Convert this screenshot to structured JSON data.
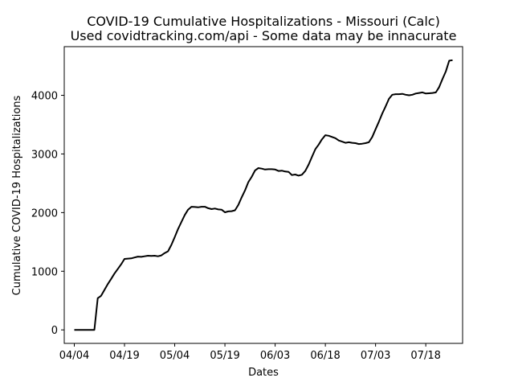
{
  "chart_data": {
    "type": "line",
    "title": "COVID-19 Cumulative Hospitalizations - Missouri (Calc)",
    "subtitle": "Used covidtracking.com/api - Some data may be innacurate",
    "xlabel": "Dates",
    "ylabel": "Cumulative COVID-19 Hospitalizations",
    "xlim": [
      "2020-04-01",
      "2020-07-29"
    ],
    "ylim": [
      -230,
      4830
    ],
    "x_ticks": [
      {
        "date": "2020-04-04",
        "label": "04/04"
      },
      {
        "date": "2020-04-19",
        "label": "04/19"
      },
      {
        "date": "2020-05-04",
        "label": "05/04"
      },
      {
        "date": "2020-05-19",
        "label": "05/19"
      },
      {
        "date": "2020-06-03",
        "label": "06/03"
      },
      {
        "date": "2020-06-18",
        "label": "06/18"
      },
      {
        "date": "2020-07-03",
        "label": "07/03"
      },
      {
        "date": "2020-07-18",
        "label": "07/18"
      }
    ],
    "y_ticks": [
      {
        "value": 0,
        "label": "0"
      },
      {
        "value": 1000,
        "label": "1000"
      },
      {
        "value": 2000,
        "label": "2000"
      },
      {
        "value": 3000,
        "label": "3000"
      },
      {
        "value": 4000,
        "label": "4000"
      }
    ],
    "grid": false,
    "line_color": "#000000",
    "series": [
      {
        "x": [
          "2020-04-04",
          "2020-04-05",
          "2020-04-06",
          "2020-04-07",
          "2020-04-08",
          "2020-04-09",
          "2020-04-10",
          "2020-04-11",
          "2020-04-12",
          "2020-04-13",
          "2020-04-14",
          "2020-04-15",
          "2020-04-16",
          "2020-04-17",
          "2020-04-18",
          "2020-04-19",
          "2020-04-20",
          "2020-04-21",
          "2020-04-22",
          "2020-04-23",
          "2020-04-24",
          "2020-04-25",
          "2020-04-26",
          "2020-04-27",
          "2020-04-28",
          "2020-04-29",
          "2020-04-30",
          "2020-05-01",
          "2020-05-02",
          "2020-05-03",
          "2020-05-04",
          "2020-05-05",
          "2020-05-06",
          "2020-05-07",
          "2020-05-08",
          "2020-05-09",
          "2020-05-10",
          "2020-05-11",
          "2020-05-12",
          "2020-05-13",
          "2020-05-14",
          "2020-05-15",
          "2020-05-16",
          "2020-05-17",
          "2020-05-18",
          "2020-05-19",
          "2020-05-20",
          "2020-05-21",
          "2020-05-22",
          "2020-05-23",
          "2020-05-24",
          "2020-05-25",
          "2020-05-26",
          "2020-05-27",
          "2020-05-28",
          "2020-05-29",
          "2020-05-30",
          "2020-05-31",
          "2020-06-01",
          "2020-06-02",
          "2020-06-03",
          "2020-06-04",
          "2020-06-05",
          "2020-06-06",
          "2020-06-07",
          "2020-06-08",
          "2020-06-09",
          "2020-06-10",
          "2020-06-11",
          "2020-06-12",
          "2020-06-13",
          "2020-06-14",
          "2020-06-15",
          "2020-06-16",
          "2020-06-17",
          "2020-06-18",
          "2020-06-19",
          "2020-06-20",
          "2020-06-21",
          "2020-06-22",
          "2020-06-23",
          "2020-06-24",
          "2020-06-25",
          "2020-06-26",
          "2020-06-27",
          "2020-06-28",
          "2020-06-29",
          "2020-06-30",
          "2020-07-01",
          "2020-07-02",
          "2020-07-03",
          "2020-07-04",
          "2020-07-05",
          "2020-07-06",
          "2020-07-07",
          "2020-07-08",
          "2020-07-09",
          "2020-07-10",
          "2020-07-11",
          "2020-07-12",
          "2020-07-13",
          "2020-07-14",
          "2020-07-15",
          "2020-07-16",
          "2020-07-17",
          "2020-07-18",
          "2020-07-19",
          "2020-07-20",
          "2020-07-21",
          "2020-07-22",
          "2020-07-23",
          "2020-07-24",
          "2020-07-25",
          "2020-07-26"
        ],
        "y": [
          0,
          0,
          0,
          0,
          0,
          0,
          0,
          540,
          580,
          680,
          780,
          870,
          960,
          1040,
          1120,
          1210,
          1215,
          1220,
          1235,
          1250,
          1245,
          1255,
          1265,
          1260,
          1265,
          1255,
          1270,
          1310,
          1340,
          1450,
          1580,
          1720,
          1840,
          1960,
          2050,
          2100,
          2095,
          2090,
          2100,
          2100,
          2075,
          2060,
          2070,
          2055,
          2050,
          2005,
          2020,
          2025,
          2040,
          2130,
          2260,
          2380,
          2520,
          2610,
          2720,
          2760,
          2750,
          2735,
          2740,
          2740,
          2735,
          2710,
          2715,
          2700,
          2695,
          2640,
          2650,
          2630,
          2645,
          2710,
          2820,
          2950,
          3080,
          3160,
          3250,
          3320,
          3310,
          3290,
          3270,
          3230,
          3210,
          3190,
          3200,
          3190,
          3185,
          3170,
          3175,
          3185,
          3200,
          3290,
          3420,
          3550,
          3690,
          3810,
          3940,
          4010,
          4020,
          4020,
          4025,
          4010,
          4000,
          4010,
          4030,
          4040,
          4050,
          4030,
          4035,
          4040,
          4050,
          4140,
          4280,
          4410,
          4590,
          4600
        ]
      }
    ]
  }
}
